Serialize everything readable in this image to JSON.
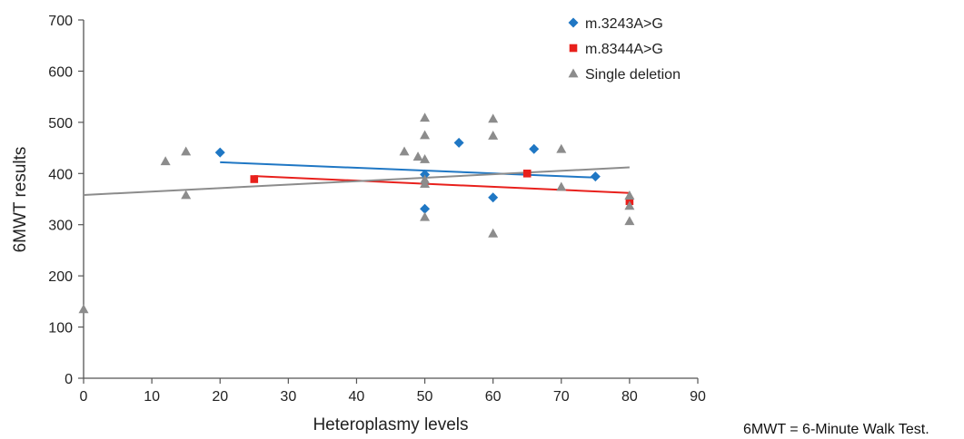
{
  "chart_data": {
    "type": "scatter",
    "xlabel": "Heteroplasmy levels",
    "ylabel": "6MWT results",
    "xlim": [
      0,
      90
    ],
    "ylim": [
      0,
      700
    ],
    "xticks": [
      0,
      10,
      20,
      30,
      40,
      50,
      60,
      70,
      80,
      90
    ],
    "yticks": [
      0,
      100,
      200,
      300,
      400,
      500,
      600,
      700
    ],
    "grid": false,
    "legend_position": "top-right",
    "series": [
      {
        "name": "m.3243A>G",
        "marker": "diamond",
        "color": "#1f77c4",
        "points": [
          [
            20,
            441
          ],
          [
            50,
            398
          ],
          [
            50,
            331
          ],
          [
            55,
            460
          ],
          [
            60,
            353
          ],
          [
            66,
            448
          ],
          [
            75,
            394
          ]
        ],
        "trendline": [
          [
            20,
            422
          ],
          [
            75,
            392
          ]
        ]
      },
      {
        "name": "m.8344A>G",
        "marker": "square",
        "color": "#e8201c",
        "points": [
          [
            25,
            389
          ],
          [
            65,
            400
          ],
          [
            80,
            346
          ]
        ],
        "trendline": [
          [
            25,
            395
          ],
          [
            80,
            362
          ]
        ]
      },
      {
        "name": "Single deletion",
        "marker": "triangle",
        "color": "#8c8c8c",
        "points": [
          [
            0,
            135
          ],
          [
            12,
            424
          ],
          [
            15,
            443
          ],
          [
            15,
            358
          ],
          [
            47,
            443
          ],
          [
            49,
            433
          ],
          [
            50,
            509
          ],
          [
            50,
            475
          ],
          [
            50,
            428
          ],
          [
            50,
            388
          ],
          [
            50,
            380
          ],
          [
            50,
            315
          ],
          [
            60,
            507
          ],
          [
            60,
            474
          ],
          [
            60,
            283
          ],
          [
            70,
            448
          ],
          [
            70,
            374
          ],
          [
            80,
            357
          ],
          [
            80,
            337
          ],
          [
            80,
            307
          ]
        ],
        "trendline": [
          [
            0,
            358
          ],
          [
            80,
            412
          ]
        ]
      }
    ]
  },
  "footnote": "6MWT = 6-Minute Walk Test."
}
